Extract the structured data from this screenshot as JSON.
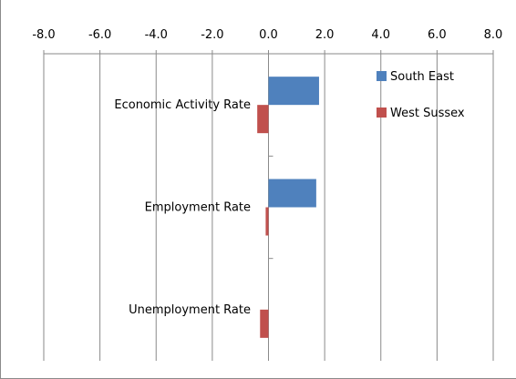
{
  "chart_data": {
    "type": "bar",
    "orientation": "horizontal",
    "x_ticks": [
      "-8.0",
      "-6.0",
      "-4.0",
      "-2.0",
      "0.0",
      "2.0",
      "4.0",
      "6.0",
      "8.0"
    ],
    "xlim": [
      -8,
      8
    ],
    "x_axis_position": "top",
    "grid": "vertical",
    "categories": [
      "Economic Activity Rate",
      "Employment Rate",
      "Unemployment Rate"
    ],
    "series": [
      {
        "name": "South East",
        "color": "#4F81BD",
        "values": [
          1.8,
          1.7,
          0.0
        ]
      },
      {
        "name": "West Sussex",
        "color": "#C0504D",
        "values": [
          -0.4,
          -0.1,
          -0.3
        ]
      }
    ],
    "legend_position": "top-right"
  }
}
